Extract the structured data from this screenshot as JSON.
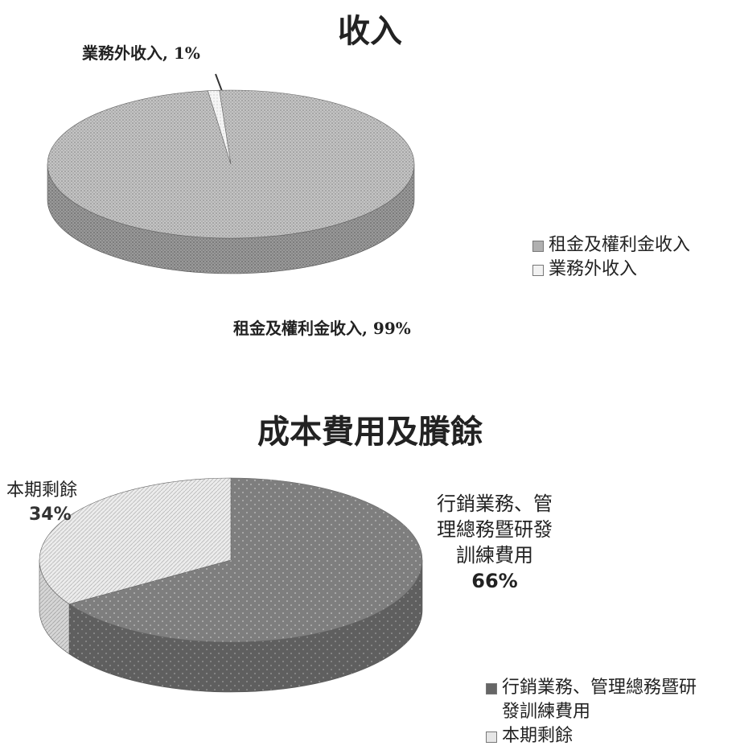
{
  "chart_data": [
    {
      "type": "pie",
      "title": "收入",
      "categories": [
        "租金及權利金收入",
        "業務外收入"
      ],
      "values": [
        99,
        1
      ],
      "unit": "%",
      "data_labels": [
        "租金及權利金收入, 99%",
        "業務外收入, 1%"
      ],
      "legend": [
        "租金及權利金收入",
        "業務外收入"
      ],
      "legend_placement": "right",
      "colors": [
        "#bdbdbd",
        "#f2f2f2"
      ]
    },
    {
      "type": "pie",
      "title": "成本費用及賸餘",
      "categories": [
        "行銷業務、管理總務暨研發訓練費用",
        "本期剩餘"
      ],
      "values": [
        66,
        34
      ],
      "unit": "%",
      "data_labels": [
        {
          "name_lines": [
            "行銷業務、管",
            "理總務暨研發",
            "訓練費用"
          ],
          "pct": "66%"
        },
        {
          "name_lines": [
            "本期剩餘"
          ],
          "pct": "34%"
        }
      ],
      "legend": [
        {
          "lines": [
            "行銷業務、管理總務暨研",
            "發訓練費用"
          ]
        },
        {
          "lines": [
            "本期剩餘"
          ]
        }
      ],
      "legend_placement": "bottom-right",
      "colors": [
        "#7a7a7a",
        "#e9e9e9"
      ]
    }
  ]
}
